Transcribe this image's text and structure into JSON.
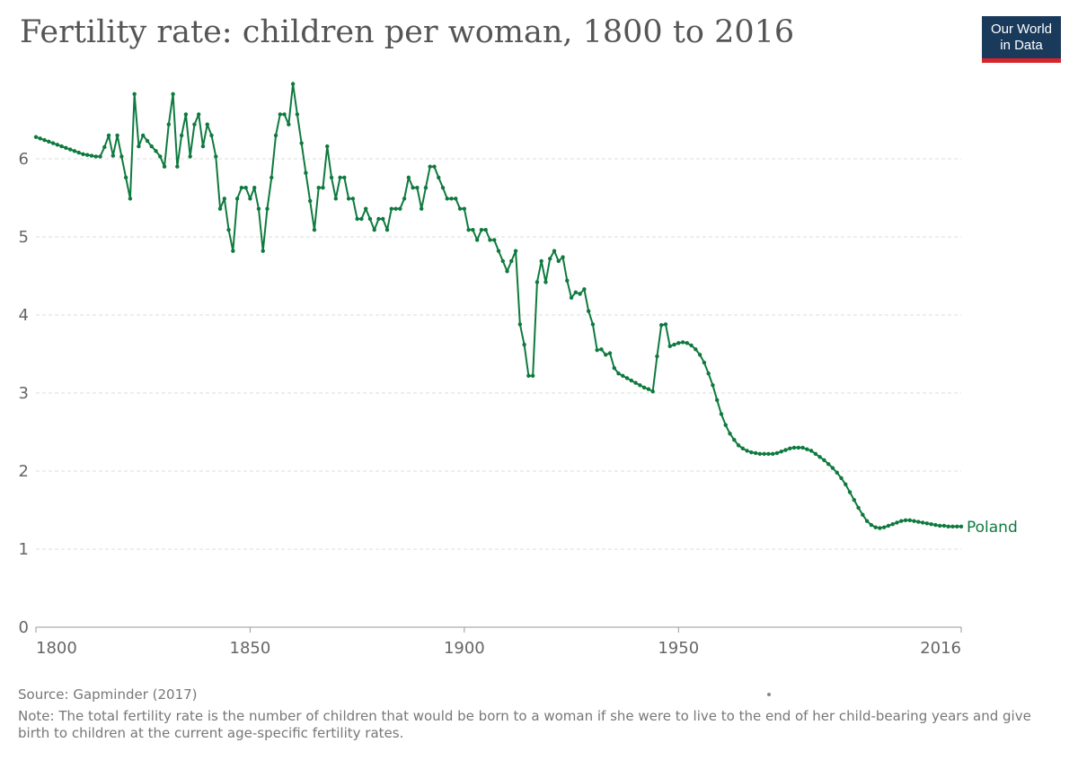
{
  "logo": {
    "line1": "Our World",
    "line2": "in Data",
    "background": "#1a3a5c",
    "accent": "#d6242a"
  },
  "source": "Source: Gapminder (2017)",
  "note": "Note: The total fertility rate is the number of children that would be born to a woman if she were to live to the end of her child-bearing years and give birth to children at the current age-specific fertility rates.",
  "chart_data": {
    "type": "line",
    "title": "Fertility rate: children per woman, 1800 to 2016",
    "xlabel": "",
    "ylabel": "",
    "xlim": [
      1800,
      2016
    ],
    "ylim": [
      0,
      7
    ],
    "x_ticks": [
      1800,
      1850,
      1900,
      1950,
      2016
    ],
    "y_ticks": [
      0,
      1,
      2,
      3,
      4,
      5,
      6
    ],
    "grid": "horizontal dashed",
    "legend": "inline label at line end",
    "line_color": "#0e7a3e",
    "series": [
      {
        "name": "Poland",
        "points": [
          [
            1800,
            6.28
          ],
          [
            1801,
            6.26
          ],
          [
            1802,
            6.24
          ],
          [
            1803,
            6.22
          ],
          [
            1804,
            6.2
          ],
          [
            1805,
            6.18
          ],
          [
            1806,
            6.16
          ],
          [
            1807,
            6.14
          ],
          [
            1808,
            6.12
          ],
          [
            1809,
            6.1
          ],
          [
            1810,
            6.08
          ],
          [
            1811,
            6.06
          ],
          [
            1812,
            6.05
          ],
          [
            1813,
            6.04
          ],
          [
            1814,
            6.03
          ],
          [
            1815,
            6.03
          ],
          [
            1816,
            6.15
          ],
          [
            1817,
            6.3
          ],
          [
            1818,
            6.04
          ],
          [
            1819,
            6.3
          ],
          [
            1820,
            6.03
          ],
          [
            1821,
            5.76
          ],
          [
            1822,
            5.49
          ],
          [
            1823,
            6.83
          ],
          [
            1824,
            6.16
          ],
          [
            1825,
            6.3
          ],
          [
            1826,
            6.23
          ],
          [
            1827,
            6.16
          ],
          [
            1828,
            6.1
          ],
          [
            1829,
            6.03
          ],
          [
            1830,
            5.9
          ],
          [
            1831,
            6.44
          ],
          [
            1832,
            6.83
          ],
          [
            1833,
            5.9
          ],
          [
            1834,
            6.3
          ],
          [
            1835,
            6.57
          ],
          [
            1836,
            6.03
          ],
          [
            1837,
            6.44
          ],
          [
            1838,
            6.57
          ],
          [
            1839,
            6.16
          ],
          [
            1840,
            6.44
          ],
          [
            1841,
            6.3
          ],
          [
            1842,
            6.03
          ],
          [
            1843,
            5.36
          ],
          [
            1844,
            5.49
          ],
          [
            1845,
            5.09
          ],
          [
            1846,
            4.82
          ],
          [
            1847,
            5.49
          ],
          [
            1848,
            5.63
          ],
          [
            1849,
            5.63
          ],
          [
            1850,
            5.49
          ],
          [
            1851,
            5.63
          ],
          [
            1852,
            5.36
          ],
          [
            1853,
            4.82
          ],
          [
            1854,
            5.36
          ],
          [
            1855,
            5.76
          ],
          [
            1856,
            6.3
          ],
          [
            1857,
            6.57
          ],
          [
            1858,
            6.57
          ],
          [
            1859,
            6.44
          ],
          [
            1860,
            6.96
          ],
          [
            1861,
            6.57
          ],
          [
            1862,
            6.2
          ],
          [
            1863,
            5.82
          ],
          [
            1864,
            5.46
          ],
          [
            1865,
            5.09
          ],
          [
            1866,
            5.63
          ],
          [
            1867,
            5.63
          ],
          [
            1868,
            6.16
          ],
          [
            1869,
            5.76
          ],
          [
            1870,
            5.49
          ],
          [
            1871,
            5.76
          ],
          [
            1872,
            5.76
          ],
          [
            1873,
            5.49
          ],
          [
            1874,
            5.49
          ],
          [
            1875,
            5.23
          ],
          [
            1876,
            5.23
          ],
          [
            1877,
            5.36
          ],
          [
            1878,
            5.23
          ],
          [
            1879,
            5.09
          ],
          [
            1880,
            5.23
          ],
          [
            1881,
            5.23
          ],
          [
            1882,
            5.09
          ],
          [
            1883,
            5.36
          ],
          [
            1884,
            5.36
          ],
          [
            1885,
            5.36
          ],
          [
            1886,
            5.49
          ],
          [
            1887,
            5.76
          ],
          [
            1888,
            5.63
          ],
          [
            1889,
            5.63
          ],
          [
            1890,
            5.36
          ],
          [
            1891,
            5.63
          ],
          [
            1892,
            5.9
          ],
          [
            1893,
            5.9
          ],
          [
            1894,
            5.76
          ],
          [
            1895,
            5.63
          ],
          [
            1896,
            5.49
          ],
          [
            1897,
            5.49
          ],
          [
            1898,
            5.49
          ],
          [
            1899,
            5.36
          ],
          [
            1900,
            5.36
          ],
          [
            1901,
            5.09
          ],
          [
            1902,
            5.09
          ],
          [
            1903,
            4.96
          ],
          [
            1904,
            5.09
          ],
          [
            1905,
            5.09
          ],
          [
            1906,
            4.96
          ],
          [
            1907,
            4.96
          ],
          [
            1908,
            4.82
          ],
          [
            1909,
            4.69
          ],
          [
            1910,
            4.56
          ],
          [
            1911,
            4.69
          ],
          [
            1912,
            4.82
          ],
          [
            1913,
            3.88
          ],
          [
            1914,
            3.62
          ],
          [
            1915,
            3.22
          ],
          [
            1916,
            3.22
          ],
          [
            1917,
            4.42
          ],
          [
            1918,
            4.69
          ],
          [
            1919,
            4.42
          ],
          [
            1920,
            4.72
          ],
          [
            1921,
            4.82
          ],
          [
            1922,
            4.69
          ],
          [
            1923,
            4.74
          ],
          [
            1924,
            4.44
          ],
          [
            1925,
            4.22
          ],
          [
            1926,
            4.29
          ],
          [
            1927,
            4.27
          ],
          [
            1928,
            4.33
          ],
          [
            1929,
            4.05
          ],
          [
            1930,
            3.88
          ],
          [
            1931,
            3.55
          ],
          [
            1932,
            3.56
          ],
          [
            1933,
            3.49
          ],
          [
            1934,
            3.51
          ],
          [
            1935,
            3.32
          ],
          [
            1936,
            3.25
          ],
          [
            1937,
            3.22
          ],
          [
            1938,
            3.19
          ],
          [
            1939,
            3.16
          ],
          [
            1940,
            3.13
          ],
          [
            1941,
            3.1
          ],
          [
            1942,
            3.07
          ],
          [
            1943,
            3.05
          ],
          [
            1944,
            3.02
          ],
          [
            1945,
            3.47
          ],
          [
            1946,
            3.87
          ],
          [
            1947,
            3.88
          ],
          [
            1948,
            3.6
          ],
          [
            1949,
            3.62
          ],
          [
            1950,
            3.64
          ],
          [
            1951,
            3.65
          ],
          [
            1952,
            3.64
          ],
          [
            1953,
            3.61
          ],
          [
            1954,
            3.56
          ],
          [
            1955,
            3.49
          ],
          [
            1956,
            3.39
          ],
          [
            1957,
            3.25
          ],
          [
            1958,
            3.1
          ],
          [
            1959,
            2.91
          ],
          [
            1960,
            2.73
          ],
          [
            1961,
            2.59
          ],
          [
            1962,
            2.48
          ],
          [
            1963,
            2.4
          ],
          [
            1964,
            2.33
          ],
          [
            1965,
            2.29
          ],
          [
            1966,
            2.26
          ],
          [
            1967,
            2.24
          ],
          [
            1968,
            2.23
          ],
          [
            1969,
            2.22
          ],
          [
            1970,
            2.22
          ],
          [
            1971,
            2.22
          ],
          [
            1972,
            2.22
          ],
          [
            1973,
            2.23
          ],
          [
            1974,
            2.25
          ],
          [
            1975,
            2.27
          ],
          [
            1976,
            2.29
          ],
          [
            1977,
            2.3
          ],
          [
            1978,
            2.3
          ],
          [
            1979,
            2.3
          ],
          [
            1980,
            2.28
          ],
          [
            1981,
            2.26
          ],
          [
            1982,
            2.22
          ],
          [
            1983,
            2.18
          ],
          [
            1984,
            2.14
          ],
          [
            1985,
            2.09
          ],
          [
            1986,
            2.04
          ],
          [
            1987,
            1.98
          ],
          [
            1988,
            1.91
          ],
          [
            1989,
            1.83
          ],
          [
            1990,
            1.73
          ],
          [
            1991,
            1.63
          ],
          [
            1992,
            1.53
          ],
          [
            1993,
            1.44
          ],
          [
            1994,
            1.36
          ],
          [
            1995,
            1.31
          ],
          [
            1996,
            1.28
          ],
          [
            1997,
            1.27
          ],
          [
            1998,
            1.28
          ],
          [
            1999,
            1.3
          ],
          [
            2000,
            1.32
          ],
          [
            2001,
            1.34
          ],
          [
            2002,
            1.36
          ],
          [
            2003,
            1.37
          ],
          [
            2004,
            1.37
          ],
          [
            2005,
            1.36
          ],
          [
            2006,
            1.35
          ],
          [
            2007,
            1.34
          ],
          [
            2008,
            1.33
          ],
          [
            2009,
            1.32
          ],
          [
            2010,
            1.31
          ],
          [
            2011,
            1.3
          ],
          [
            2012,
            1.3
          ],
          [
            2013,
            1.29
          ],
          [
            2014,
            1.29
          ],
          [
            2015,
            1.29
          ],
          [
            2016,
            1.29
          ]
        ]
      }
    ]
  }
}
